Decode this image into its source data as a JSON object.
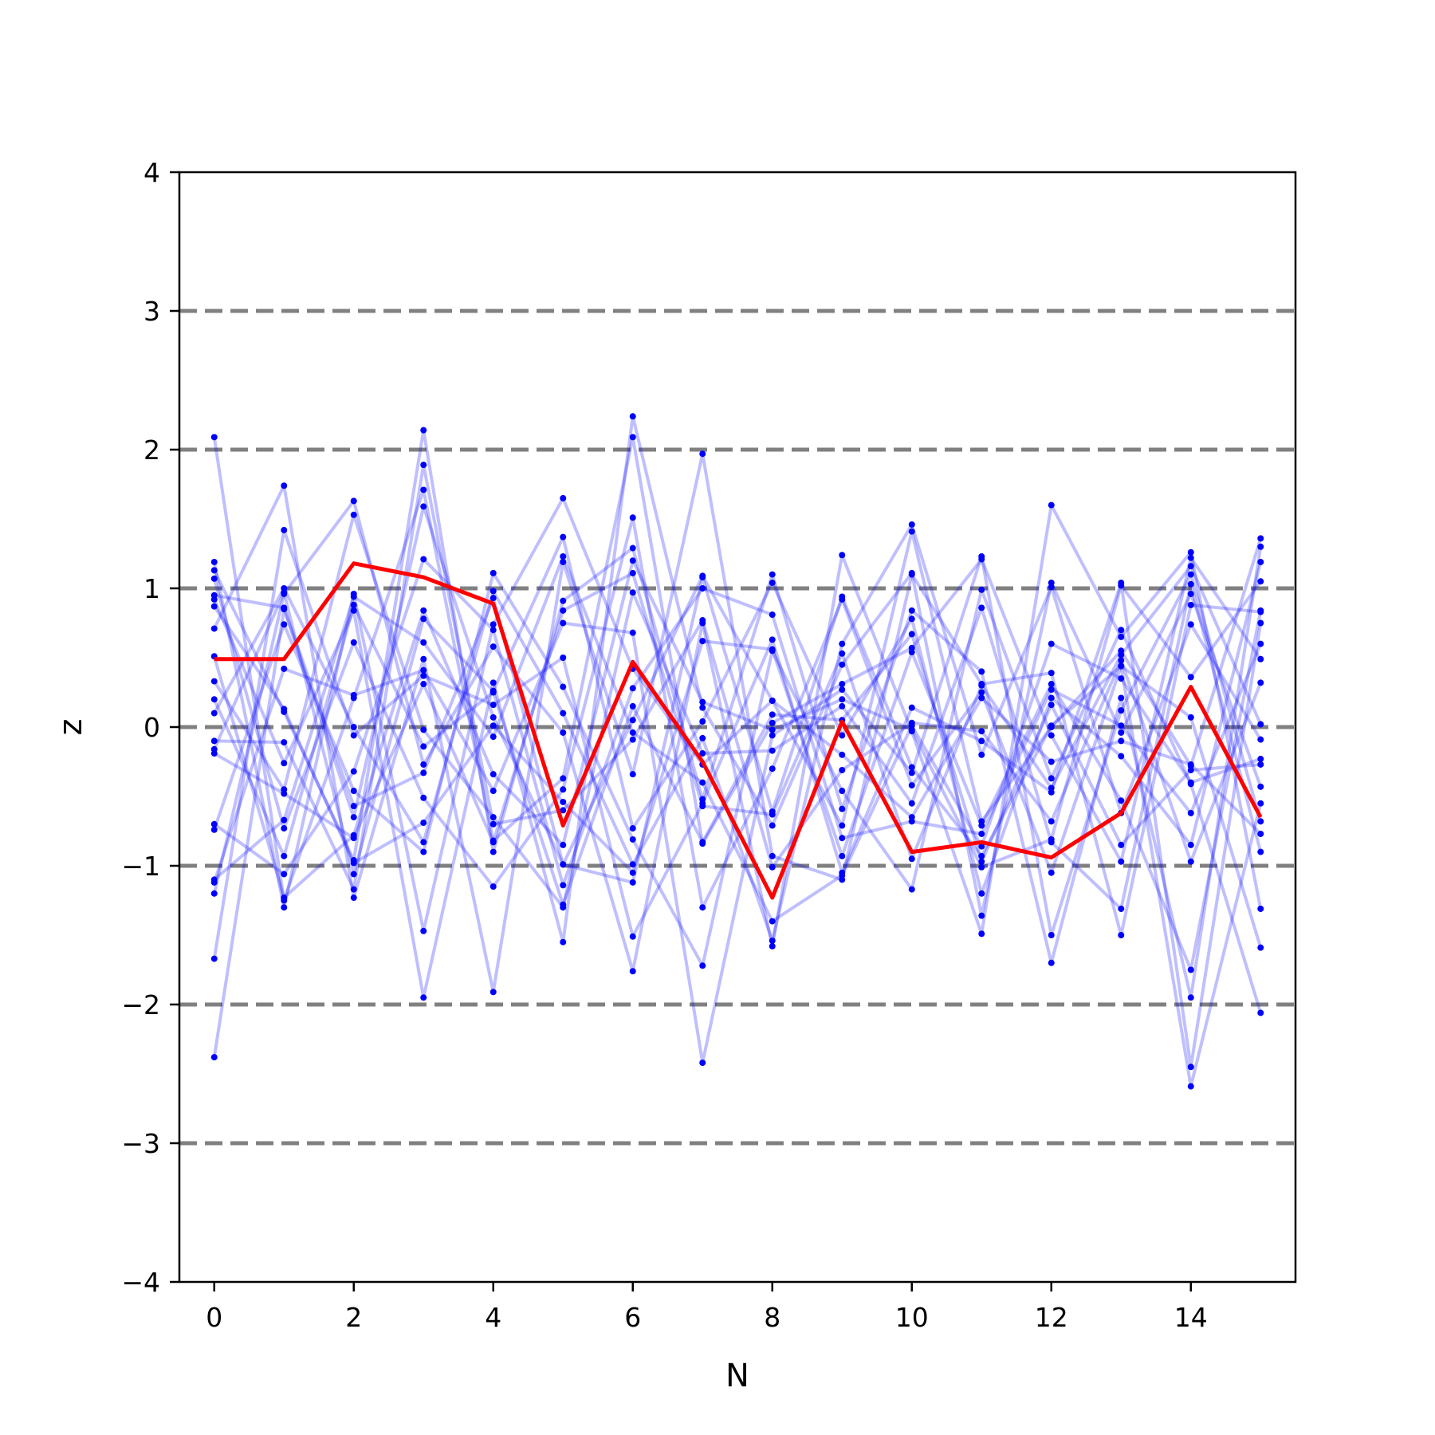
{
  "chart_data": {
    "type": "line",
    "xlabel": "N",
    "ylabel": "z",
    "xlim": [
      -0.5,
      15.5
    ],
    "ylim": [
      -4,
      4
    ],
    "x_ticks": [
      0,
      2,
      4,
      6,
      8,
      10,
      12,
      14
    ],
    "x_tick_labels": [
      "0",
      "2",
      "4",
      "6",
      "8",
      "10",
      "12",
      "14"
    ],
    "y_ticks": [
      -4,
      -3,
      -2,
      -1,
      0,
      1,
      2,
      3,
      4
    ],
    "y_tick_labels": [
      "−4",
      "−3",
      "−2",
      "−1",
      "0",
      "1",
      "2",
      "3",
      "4"
    ],
    "reference_lines": [
      -3,
      -2,
      -1,
      0,
      1,
      2,
      3
    ],
    "reference_line_color": "#808080",
    "background_series_color": "#0000ff",
    "highlight_color": "#ff0000",
    "x": [
      0,
      1,
      2,
      3,
      4,
      5,
      6,
      7,
      8,
      9,
      10,
      11,
      12,
      13,
      14,
      15
    ],
    "highlight_series": {
      "values": [
        0.49,
        0.49,
        1.18,
        1.08,
        0.89,
        -0.71,
        0.47,
        -0.25,
        -1.23,
        0.04,
        -0.9,
        -0.83,
        -0.94,
        -0.62,
        0.29,
        -0.65
      ]
    },
    "background_series": [
      {
        "values": [
          2.09,
          -1.25,
          0.21,
          1.71,
          -0.82,
          -0.37,
          2.09,
          -0.84,
          0.03,
          0.31,
          0.57,
          1.21,
          -0.06,
          -0.97,
          1.22,
          0.49
        ]
      },
      {
        "values": [
          -2.38,
          0.85,
          -0.65,
          1.59,
          0.07,
          -0.99,
          -1.12,
          1.08,
          -0.61,
          0.94,
          -0.29,
          -0.93,
          0.01,
          0.44,
          -2.59,
          -0.55
        ]
      },
      {
        "values": [
          1.19,
          -1.3,
          0.96,
          -1.47,
          0.74,
          1.65,
          0.42,
          -0.27,
          0.19,
          -0.71,
          1.41,
          -0.68,
          0.0,
          0.55,
          -0.28,
          1.36
        ]
      },
      {
        "values": [
          -1.2,
          0.96,
          1.63,
          -0.27,
          0.58,
          -0.04,
          -1.76,
          0.75,
          -1.58,
          1.24,
          -0.03,
          -1.49,
          1.6,
          0.65,
          1.26,
          -1.31
        ]
      },
      {
        "values": [
          1.13,
          0.11,
          -0.96,
          2.14,
          -0.9,
          0.91,
          1.29,
          -0.52,
          1.1,
          -0.59,
          0.84,
          0.4,
          -1.7,
          0.21,
          -1.95,
          1.3
        ]
      },
      {
        "values": [
          0.71,
          1.74,
          -1.23,
          0.49,
          -1.91,
          1.19,
          -0.34,
          1.97,
          -0.93,
          -1.1,
          1.1,
          0.31,
          0.39,
          -1.5,
          0.88,
          0.83
        ]
      },
      {
        "values": [
          -0.74,
          0.74,
          -0.46,
          -0.9,
          1.11,
          0.29,
          -0.81,
          -1.72,
          0.55,
          -0.46,
          -1.17,
          0.99,
          -0.37,
          0.7,
          -0.41,
          -2.06
        ]
      },
      {
        "values": [
          0.92,
          -0.26,
          0.84,
          -1.95,
          0.32,
          -1.55,
          2.24,
          0.14,
          -0.71,
          0.45,
          1.11,
          -1.36,
          1.04,
          -0.04,
          0.96,
          -0.43
        ]
      },
      {
        "values": [
          -1.67,
          1.42,
          -0.06,
          0.37,
          0.16,
          0.5,
          -1.51,
          -0.55,
          0.63,
          -1.05,
          0.14,
          -0.1,
          -0.47,
          1.04,
          -2.45,
          0.75
        ]
      },
      {
        "values": [
          0.33,
          -0.45,
          1.53,
          -0.02,
          -0.65,
          -1.3,
          0.97,
          -0.19,
          -0.17,
          0.15,
          -0.55,
          0.86,
          -0.83,
          -1.31,
          1.03,
          -0.9
        ]
      },
      {
        "values": [
          -0.16,
          0.97,
          -1.06,
          0.78,
          0.26,
          1.37,
          -0.73,
          0.04,
          1.04,
          -0.06,
          0.78,
          -1.2,
          0.21,
          -0.21,
          -0.85,
          1.19
        ]
      },
      {
        "values": [
          1.07,
          -0.73,
          0.61,
          -0.51,
          -1.15,
          -0.45,
          1.51,
          -1.3,
          -0.3,
          0.92,
          -0.42,
          0.25,
          -1.05,
          0.44,
          0.07,
          -1.59
        ]
      },
      {
        "values": [
          -0.7,
          -1.06,
          -0.32,
          1.21,
          0.7,
          -1.14,
          0.28,
          1.0,
          0.81,
          -0.8,
          -0.68,
          -0.77,
          0.27,
          0.01,
          -0.62,
          0.6
        ]
      },
      {
        "values": [
          0.1,
          1.0,
          0.0,
          -0.83,
          0.98,
          0.1,
          -0.99,
          -0.08,
          -1.54,
          0.6,
          1.46,
          -0.2,
          1.01,
          -0.62,
          0.74,
          -0.09
        ]
      },
      {
        "values": [
          -1.12,
          0.42,
          0.23,
          0.41,
          -0.46,
          0.75,
          0.68,
          -2.42,
          -0.06,
          0.27,
          -0.33,
          1.23,
          -1.5,
          0.12,
          1.1,
          -0.68
        ]
      },
      {
        "values": [
          -0.1,
          -0.11,
          -1.17,
          1.89,
          -0.7,
          -0.6,
          -0.09,
          0.77,
          -1.01,
          -0.31,
          0.03,
          -0.03,
          -0.68,
          0.48,
          -0.97,
          0.32
        ]
      },
      {
        "values": [
          0.2,
          -0.93,
          0.88,
          -0.14,
          0.25,
          -1.28,
          0.15,
          -0.83,
          0.09,
          0.05,
          0.67,
          -0.97,
          0.16,
          -0.85,
          -0.31,
          -0.27
        ]
      },
      {
        "values": [
          -0.19,
          -0.48,
          -0.8,
          0.31,
          -0.83,
          0.84,
          1.11,
          -0.57,
          -0.63,
          0.53,
          -0.95,
          0.3,
          -0.44,
          0.52,
          1.16,
          0.02
        ]
      },
      {
        "values": [
          0.87,
          0.13,
          -0.98,
          -0.69,
          0.01,
          -0.54,
          -1.05,
          0.62,
          0.56,
          -0.93,
          0.54,
          -0.71,
          0.31,
          -0.53,
          -1.75,
          0.84
        ]
      },
      {
        "values": [
          0.51,
          -1.23,
          -0.78,
          0.84,
          -0.34,
          -0.85,
          1.2,
          0.18,
          -0.02,
          0.2,
          -0.02,
          -1.01,
          -0.81,
          1.02,
          0.36,
          1.05
        ]
      },
      {
        "values": [
          0.95,
          0.86,
          -0.57,
          -0.33,
          0.93,
          -0.99,
          0.05,
          1.09,
          0.19,
          -0.2,
          -0.65,
          0.21,
          -0.25,
          -0.1,
          -0.27,
          -0.77
        ]
      },
      {
        "values": [
          -1.1,
          -0.67,
          0.94,
          0.61,
          -0.07,
          1.23,
          -0.04,
          -0.4,
          -1.4,
          -1.07,
          0.01,
          -0.86,
          0.6,
          0.35,
          -0.4,
          -0.23
        ]
      }
    ]
  }
}
